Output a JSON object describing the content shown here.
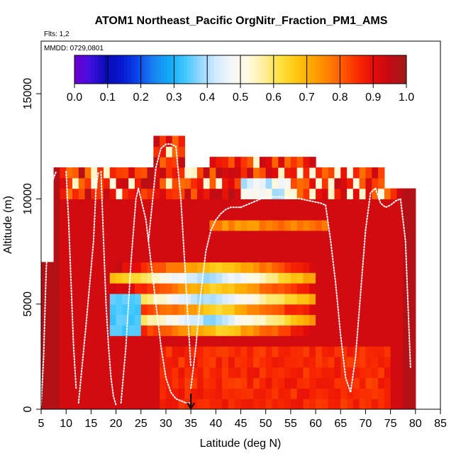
{
  "chart_data": {
    "type": "heatmap",
    "title": "ATOM1 Northeast_Pacific OrgNitr_Fraction_PM1_AMS",
    "flights_label": "Flts: 1,2",
    "date_label": "MMDD: 0729,0801",
    "xlabel": "Latitude (deg N)",
    "ylabel": "Altitude (m)",
    "xlim": [
      5,
      85
    ],
    "ylim": [
      0,
      17500
    ],
    "x_ticks": [
      "5",
      "10",
      "15",
      "20",
      "25",
      "30",
      "35",
      "40",
      "45",
      "50",
      "55",
      "60",
      "65",
      "70",
      "75",
      "80",
      "85"
    ],
    "y_ticks": [
      "0",
      "5000",
      "10000",
      "15000"
    ],
    "colorbar": {
      "min": 0,
      "max": 1,
      "tick_labels": [
        "0.0",
        "0.1",
        "0.2",
        "0.3",
        "0.4",
        "0.5",
        "0.6",
        "0.7",
        "0.8",
        "0.9",
        "1.0"
      ],
      "colors": [
        "#7000d0",
        "#4010e0",
        "#0a0ab4",
        "#0818d0",
        "#0a46e8",
        "#1a82f0",
        "#10aaf8",
        "#40c8ff",
        "#9ad8ff",
        "#d4ecff",
        "#f6f6f6",
        "#fffae0",
        "#ffee9c",
        "#ffe040",
        "#ffc814",
        "#ffa800",
        "#ff8200",
        "#ff5800",
        "#f82800",
        "#e40a0a",
        "#c00c14",
        "#a01a1a"
      ]
    },
    "marker_latitude": 35,
    "flight_tracks": [
      {
        "lat": [
          5,
          5.5,
          6,
          6.5,
          7,
          7.5,
          8
        ],
        "alt": [
          200,
          2500,
          6500,
          9000,
          10500,
          11000,
          11300
        ]
      },
      {
        "lat": [
          10,
          10.5,
          11,
          11.5,
          12
        ],
        "alt": [
          11300,
          9000,
          6000,
          3000,
          1000
        ]
      },
      {
        "lat": [
          12.5,
          14,
          15.5,
          16,
          16.5
        ],
        "alt": [
          300,
          4000,
          8000,
          10500,
          11300
        ]
      },
      {
        "lat": [
          17,
          17.5,
          18,
          18.5,
          19,
          19.5,
          20
        ],
        "alt": [
          11300,
          8000,
          5000,
          3000,
          1500,
          600,
          200
        ]
      },
      {
        "lat": [
          21,
          22,
          23,
          24,
          24.5
        ],
        "alt": [
          300,
          3000,
          7000,
          10000,
          10500
        ]
      },
      {
        "lat": [
          24.5,
          26,
          27,
          28,
          29,
          30,
          31,
          32,
          33,
          34,
          35
        ],
        "alt": [
          10500,
          9000,
          7000,
          5000,
          3000,
          1500,
          800,
          500,
          400,
          300,
          300
        ]
      },
      {
        "lat": [
          26.5,
          28,
          29,
          30,
          31,
          32,
          33,
          34,
          35
        ],
        "alt": [
          8000,
          11500,
          12400,
          12600,
          12600,
          12500,
          10000,
          6000,
          2000
        ]
      },
      {
        "lat": [
          35,
          36,
          37,
          38,
          39,
          40,
          41,
          42,
          43,
          44,
          45
        ],
        "alt": [
          1000,
          3000,
          5500,
          7500,
          8500,
          9000,
          9300,
          9500,
          9600,
          9600,
          9600
        ]
      },
      {
        "lat": [
          45,
          47,
          49,
          51,
          53,
          55,
          57,
          59,
          61,
          62
        ],
        "alt": [
          9600,
          9800,
          10000,
          10100,
          10100,
          10050,
          10000,
          9900,
          9800,
          9700
        ]
      },
      {
        "lat": [
          62,
          63,
          64,
          65,
          66,
          67,
          68,
          69,
          70,
          71,
          72
        ],
        "alt": [
          9700,
          8000,
          6000,
          3500,
          1500,
          800,
          2500,
          5500,
          8500,
          10300,
          10500
        ]
      },
      {
        "lat": [
          72,
          73,
          74,
          75,
          76,
          77,
          78,
          79
        ],
        "alt": [
          10500,
          9800,
          9600,
          9700,
          9900,
          10000,
          8000,
          2000
        ]
      }
    ],
    "cells_note": "grid of latitude x altitude bins colored by OrgNitr fraction (0–1)"
  }
}
